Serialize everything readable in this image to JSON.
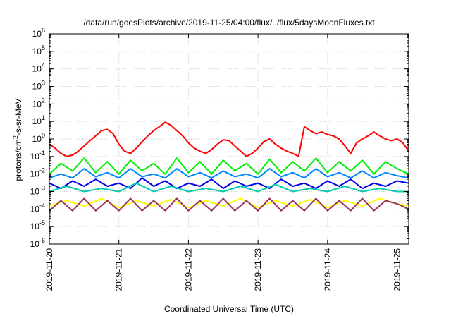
{
  "chart_data": {
    "type": "line",
    "title": "/data/run/goesPlots/archive/2019-11-25/04:00/flux/../flux/5daysMoonFluxes.txt",
    "xlabel": "Coordinated Universal Time (UTC)",
    "ylabel": {
      "base": "protons/cm",
      "sup": "2",
      "rest": "-s-sr-MeV"
    },
    "y_scale": "log",
    "ylim": [
      1e-06,
      1000000.0
    ],
    "xlim": [
      "2019-11-20T00:00",
      "2019-11-25T04:00"
    ],
    "x_ticks": [
      "2019-11-20",
      "2019-11-21",
      "2019-11-22",
      "2019-11-23",
      "2019-11-24",
      "2019-11-25"
    ],
    "y_ticks": [
      {
        "base": "10",
        "exp": "-6",
        "value": 1e-06
      },
      {
        "base": "10",
        "exp": "-5",
        "value": 1e-05
      },
      {
        "base": "10",
        "exp": "-4",
        "value": 0.0001
      },
      {
        "base": "10",
        "exp": "-3",
        "value": 0.001
      },
      {
        "base": "10",
        "exp": "-2",
        "value": 0.01
      },
      {
        "base": "10",
        "exp": "-1",
        "value": 0.1
      },
      {
        "base": "10",
        "exp": "0",
        "value": 1
      },
      {
        "base": "10",
        "exp": "1",
        "value": 10
      },
      {
        "base": "10",
        "exp": "2",
        "value": 100
      },
      {
        "base": "10",
        "exp": "3",
        "value": 1000
      },
      {
        "base": "10",
        "exp": "4",
        "value": 10000
      },
      {
        "base": "10",
        "exp": "5",
        "value": 100000
      },
      {
        "base": "10",
        "exp": "6",
        "value": 1000000
      }
    ],
    "grid": true,
    "legend": "none",
    "series": [
      {
        "color": "#ff0000",
        "x": [
          "2019-11-20T00:00",
          "2019-11-20T02:00",
          "2019-11-20T04:00",
          "2019-11-20T06:00",
          "2019-11-20T08:00",
          "2019-11-20T10:00",
          "2019-11-20T12:00",
          "2019-11-20T14:00",
          "2019-11-20T16:00",
          "2019-11-20T18:00",
          "2019-11-20T20:00",
          "2019-11-20T22:00",
          "2019-11-21T00:00",
          "2019-11-21T02:00",
          "2019-11-21T04:00",
          "2019-11-21T06:00",
          "2019-11-21T08:00",
          "2019-11-21T10:00",
          "2019-11-21T12:00",
          "2019-11-21T14:00",
          "2019-11-21T16:00",
          "2019-11-21T18:00",
          "2019-11-21T20:00",
          "2019-11-21T22:00",
          "2019-11-22T00:00",
          "2019-11-22T02:00",
          "2019-11-22T04:00",
          "2019-11-22T06:00",
          "2019-11-22T08:00",
          "2019-11-22T10:00",
          "2019-11-22T12:00",
          "2019-11-22T14:00",
          "2019-11-22T16:00",
          "2019-11-22T18:00",
          "2019-11-22T20:00",
          "2019-11-22T22:00",
          "2019-11-23T00:00",
          "2019-11-23T02:00",
          "2019-11-23T04:00",
          "2019-11-23T06:00",
          "2019-11-23T08:00",
          "2019-11-23T10:00",
          "2019-11-23T12:00",
          "2019-11-23T14:00",
          "2019-11-23T16:00",
          "2019-11-23T18:00",
          "2019-11-23T20:00",
          "2019-11-23T22:00",
          "2019-11-24T00:00",
          "2019-11-24T02:00",
          "2019-11-24T04:00",
          "2019-11-24T06:00",
          "2019-11-24T08:00",
          "2019-11-24T10:00",
          "2019-11-24T12:00",
          "2019-11-24T14:00",
          "2019-11-24T16:00",
          "2019-11-24T18:00",
          "2019-11-24T20:00",
          "2019-11-24T22:00",
          "2019-11-25T00:00",
          "2019-11-25T02:00",
          "2019-11-25T04:00"
        ],
        "values": [
          0.5,
          0.3,
          0.15,
          0.1,
          0.12,
          0.2,
          0.4,
          0.8,
          1.5,
          3,
          3.5,
          2,
          0.5,
          0.2,
          0.15,
          0.3,
          0.7,
          1.5,
          3,
          5,
          9,
          6,
          3,
          1.5,
          0.6,
          0.3,
          0.2,
          0.15,
          0.25,
          0.5,
          0.9,
          0.8,
          0.4,
          0.2,
          0.1,
          0.15,
          0.3,
          0.7,
          1.0,
          0.5,
          0.3,
          0.2,
          0.15,
          0.1,
          5,
          3,
          2,
          2.5,
          1.8,
          1.5,
          1.0,
          0.4,
          0.15,
          0.6,
          1.0,
          1.5,
          2.5,
          1.5,
          1.0,
          0.8,
          1.0,
          0.6,
          0.2
        ]
      },
      {
        "color": "#00ee00",
        "x": [
          "2019-11-20T00:00",
          "2019-11-20T04:00",
          "2019-11-20T08:00",
          "2019-11-20T12:00",
          "2019-11-20T16:00",
          "2019-11-20T20:00",
          "2019-11-21T00:00",
          "2019-11-21T04:00",
          "2019-11-21T08:00",
          "2019-11-21T12:00",
          "2019-11-21T16:00",
          "2019-11-21T20:00",
          "2019-11-22T00:00",
          "2019-11-22T04:00",
          "2019-11-22T08:00",
          "2019-11-22T12:00",
          "2019-11-22T16:00",
          "2019-11-22T20:00",
          "2019-11-23T00:00",
          "2019-11-23T04:00",
          "2019-11-23T08:00",
          "2019-11-23T12:00",
          "2019-11-23T16:00",
          "2019-11-23T20:00",
          "2019-11-24T00:00",
          "2019-11-24T04:00",
          "2019-11-24T08:00",
          "2019-11-24T12:00",
          "2019-11-24T16:00",
          "2019-11-24T20:00",
          "2019-11-25T00:00",
          "2019-11-25T04:00"
        ],
        "values": [
          0.01,
          0.04,
          0.015,
          0.08,
          0.012,
          0.05,
          0.01,
          0.06,
          0.015,
          0.04,
          0.01,
          0.08,
          0.012,
          0.05,
          0.01,
          0.06,
          0.015,
          0.04,
          0.01,
          0.07,
          0.012,
          0.05,
          0.015,
          0.08,
          0.012,
          0.05,
          0.015,
          0.06,
          0.01,
          0.05,
          0.02,
          0.01
        ]
      },
      {
        "color": "#0088ff",
        "x": [
          "2019-11-20T00:00",
          "2019-11-20T04:00",
          "2019-11-20T08:00",
          "2019-11-20T12:00",
          "2019-11-20T16:00",
          "2019-11-20T20:00",
          "2019-11-21T00:00",
          "2019-11-21T04:00",
          "2019-11-21T08:00",
          "2019-11-21T12:00",
          "2019-11-21T16:00",
          "2019-11-21T20:00",
          "2019-11-22T00:00",
          "2019-11-22T04:00",
          "2019-11-22T08:00",
          "2019-11-22T12:00",
          "2019-11-22T16:00",
          "2019-11-22T20:00",
          "2019-11-23T00:00",
          "2019-11-23T04:00",
          "2019-11-23T08:00",
          "2019-11-23T12:00",
          "2019-11-23T16:00",
          "2019-11-23T20:00",
          "2019-11-24T00:00",
          "2019-11-24T04:00",
          "2019-11-24T08:00",
          "2019-11-24T12:00",
          "2019-11-24T16:00",
          "2019-11-24T20:00",
          "2019-11-25T00:00",
          "2019-11-25T04:00"
        ],
        "values": [
          0.006,
          0.01,
          0.006,
          0.02,
          0.007,
          0.012,
          0.006,
          0.02,
          0.007,
          0.01,
          0.006,
          0.02,
          0.007,
          0.012,
          0.006,
          0.015,
          0.007,
          0.01,
          0.006,
          0.02,
          0.007,
          0.012,
          0.006,
          0.02,
          0.007,
          0.012,
          0.006,
          0.015,
          0.006,
          0.012,
          0.008,
          0.006
        ]
      },
      {
        "color": "#0000ee",
        "x": [
          "2019-11-20T00:00",
          "2019-11-20T04:00",
          "2019-11-20T08:00",
          "2019-11-20T12:00",
          "2019-11-20T16:00",
          "2019-11-20T20:00",
          "2019-11-21T00:00",
          "2019-11-21T04:00",
          "2019-11-21T08:00",
          "2019-11-21T12:00",
          "2019-11-21T16:00",
          "2019-11-21T20:00",
          "2019-11-22T00:00",
          "2019-11-22T04:00",
          "2019-11-22T08:00",
          "2019-11-22T12:00",
          "2019-11-22T16:00",
          "2019-11-22T20:00",
          "2019-11-23T00:00",
          "2019-11-23T04:00",
          "2019-11-23T08:00",
          "2019-11-23T12:00",
          "2019-11-23T16:00",
          "2019-11-23T20:00",
          "2019-11-24T00:00",
          "2019-11-24T04:00",
          "2019-11-24T08:00",
          "2019-11-24T12:00",
          "2019-11-24T16:00",
          "2019-11-24T20:00",
          "2019-11-25T00:00",
          "2019-11-25T04:00"
        ],
        "values": [
          0.003,
          0.0015,
          0.004,
          0.002,
          0.005,
          0.002,
          0.003,
          0.0015,
          0.006,
          0.002,
          0.004,
          0.0015,
          0.003,
          0.002,
          0.005,
          0.0015,
          0.004,
          0.002,
          0.003,
          0.0015,
          0.005,
          0.002,
          0.003,
          0.0015,
          0.004,
          0.002,
          0.005,
          0.0015,
          0.003,
          0.002,
          0.004,
          0.003
        ]
      },
      {
        "color": "#00ccaa",
        "x": [
          "2019-11-20T00:00",
          "2019-11-20T06:00",
          "2019-11-20T12:00",
          "2019-11-20T18:00",
          "2019-11-21T00:00",
          "2019-11-21T06:00",
          "2019-11-21T12:00",
          "2019-11-21T18:00",
          "2019-11-22T00:00",
          "2019-11-22T06:00",
          "2019-11-22T12:00",
          "2019-11-22T18:00",
          "2019-11-23T00:00",
          "2019-11-23T06:00",
          "2019-11-23T12:00",
          "2019-11-23T18:00",
          "2019-11-24T00:00",
          "2019-11-24T06:00",
          "2019-11-24T12:00",
          "2019-11-24T18:00",
          "2019-11-25T00:00",
          "2019-11-25T04:00"
        ],
        "values": [
          0.001,
          0.002,
          0.001,
          0.0015,
          0.001,
          0.003,
          0.001,
          0.002,
          0.001,
          0.0015,
          0.001,
          0.002,
          0.001,
          0.0025,
          0.001,
          0.0015,
          0.001,
          0.002,
          0.001,
          0.0015,
          0.001,
          0.001
        ]
      },
      {
        "color": "#ffff00",
        "x": [
          "2019-11-20T00:00",
          "2019-11-20T06:00",
          "2019-11-20T12:00",
          "2019-11-20T18:00",
          "2019-11-21T00:00",
          "2019-11-21T06:00",
          "2019-11-21T12:00",
          "2019-11-21T18:00",
          "2019-11-22T00:00",
          "2019-11-22T06:00",
          "2019-11-22T12:00",
          "2019-11-22T18:00",
          "2019-11-23T00:00",
          "2019-11-23T06:00",
          "2019-11-23T12:00",
          "2019-11-23T18:00",
          "2019-11-24T00:00",
          "2019-11-24T06:00",
          "2019-11-24T12:00",
          "2019-11-24T18:00",
          "2019-11-25T00:00",
          "2019-11-25T04:00"
        ],
        "values": [
          0.00015,
          0.0003,
          0.00015,
          0.0004,
          0.00012,
          0.0003,
          0.00015,
          0.00035,
          0.00012,
          0.0003,
          0.00015,
          0.0004,
          0.00012,
          0.0003,
          0.00015,
          0.00035,
          0.00012,
          0.0003,
          0.00015,
          0.0004,
          0.0002,
          0.00015
        ]
      },
      {
        "color": "#993366",
        "x": [
          "2019-11-20T00:00",
          "2019-11-20T04:00",
          "2019-11-20T08:00",
          "2019-11-20T12:00",
          "2019-11-20T16:00",
          "2019-11-20T20:00",
          "2019-11-21T00:00",
          "2019-11-21T04:00",
          "2019-11-21T08:00",
          "2019-11-21T12:00",
          "2019-11-21T16:00",
          "2019-11-21T20:00",
          "2019-11-22T00:00",
          "2019-11-22T04:00",
          "2019-11-22T08:00",
          "2019-11-22T12:00",
          "2019-11-22T16:00",
          "2019-11-22T20:00",
          "2019-11-23T00:00",
          "2019-11-23T04:00",
          "2019-11-23T08:00",
          "2019-11-23T12:00",
          "2019-11-23T16:00",
          "2019-11-23T20:00",
          "2019-11-24T00:00",
          "2019-11-24T04:00",
          "2019-11-24T08:00",
          "2019-11-24T12:00",
          "2019-11-24T16:00",
          "2019-11-24T20:00",
          "2019-11-25T00:00",
          "2019-11-25T04:00"
        ],
        "values": [
          8e-05,
          0.0003,
          8e-05,
          0.0004,
          8e-05,
          0.0003,
          8e-05,
          0.0004,
          8e-05,
          0.0003,
          8e-05,
          0.0004,
          8e-05,
          0.0003,
          8e-05,
          0.0004,
          8e-05,
          0.0003,
          8e-05,
          0.0004,
          8e-05,
          0.0003,
          8e-05,
          0.0004,
          8e-05,
          0.0003,
          8e-05,
          0.0004,
          8e-05,
          0.0003,
          0.0002,
          0.0001
        ]
      }
    ]
  }
}
